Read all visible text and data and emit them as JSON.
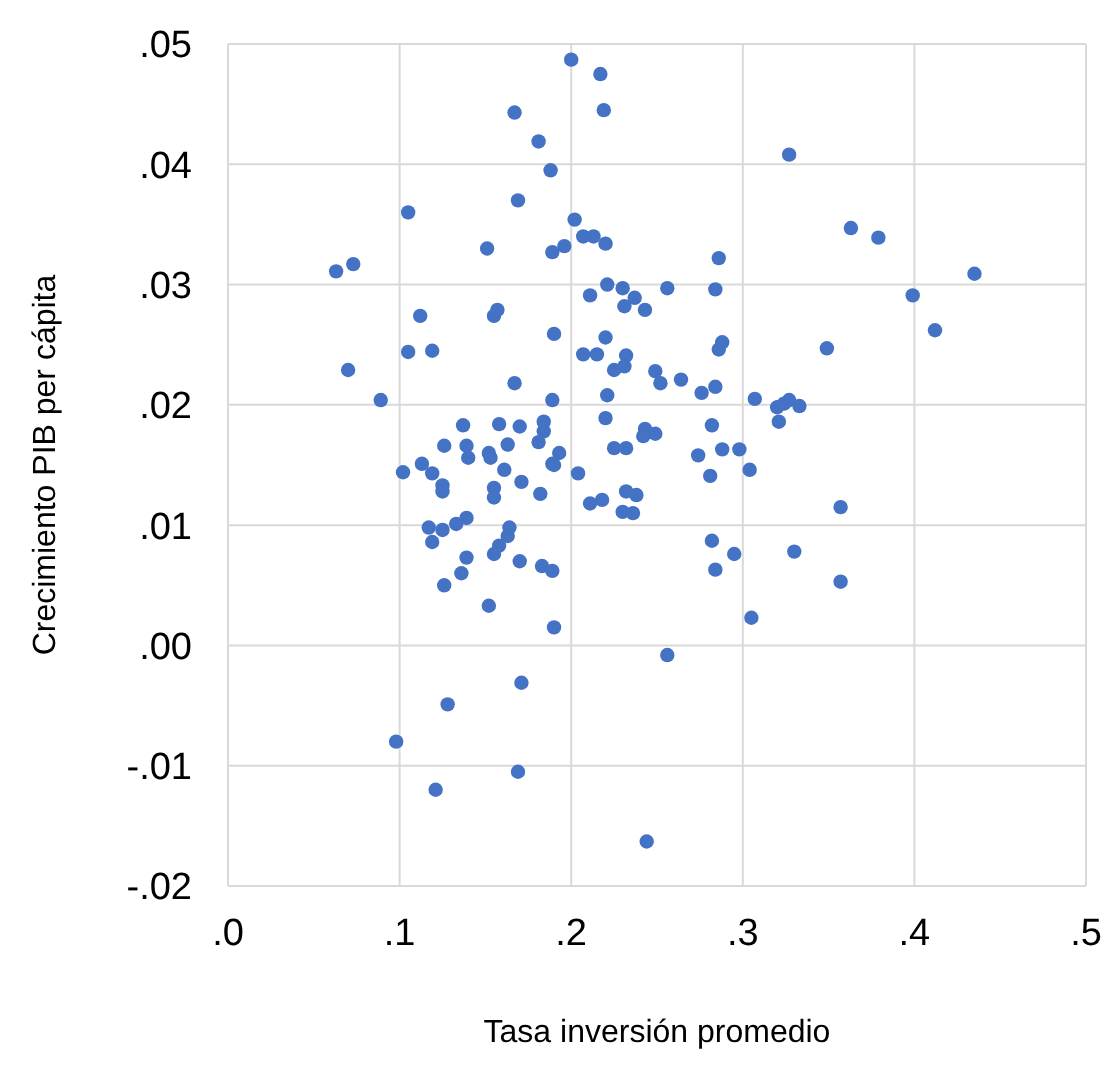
{
  "chart_data": {
    "type": "scatter",
    "xlabel": "Tasa inversión promedio",
    "ylabel": "Crecimiento PIB per cápita",
    "xlim": [
      0,
      0.5
    ],
    "xticks": [
      {
        "value": 0,
        "label": ".0"
      },
      {
        "value": 0.1,
        "label": ".1"
      },
      {
        "value": 0.2,
        "label": ".2"
      },
      {
        "value": 0.3,
        "label": ".3"
      },
      {
        "value": 0.4,
        "label": ".4"
      },
      {
        "value": 0.5,
        "label": ".5"
      }
    ],
    "ylim": [
      -0.02,
      0.05
    ],
    "yticks": [
      {
        "value": -0.02,
        "label": "-.02"
      },
      {
        "value": -0.01,
        "label": "-.01"
      },
      {
        "value": 0,
        "label": ".00"
      },
      {
        "value": 0.01,
        "label": ".01"
      },
      {
        "value": 0.02,
        "label": ".02"
      },
      {
        "value": 0.03,
        "label": ".03"
      },
      {
        "value": 0.04,
        "label": ".04"
      },
      {
        "value": 0.05,
        "label": ".05"
      }
    ],
    "grid": true,
    "legend": false,
    "marker": "circle",
    "series": [
      {
        "color": "#4472c4",
        "x": [
          0.2,
          0.217,
          0.219,
          0.167,
          0.181,
          0.188,
          0.327,
          0.169,
          0.105,
          0.202,
          0.207,
          0.213,
          0.22,
          0.151,
          0.189,
          0.196,
          0.363,
          0.379,
          0.435,
          0.399,
          0.412,
          0.349,
          0.063,
          0.073,
          0.211,
          0.221,
          0.23,
          0.237,
          0.231,
          0.243,
          0.256,
          0.112,
          0.155,
          0.157,
          0.19,
          0.105,
          0.119,
          0.07,
          0.207,
          0.215,
          0.22,
          0.232,
          0.225,
          0.231,
          0.249,
          0.252,
          0.089,
          0.167,
          0.189,
          0.221,
          0.22,
          0.137,
          0.158,
          0.17,
          0.184,
          0.184,
          0.243,
          0.249,
          0.286,
          0.284,
          0.286,
          0.288,
          0.264,
          0.276,
          0.284,
          0.307,
          0.32,
          0.324,
          0.327,
          0.333,
          0.321,
          0.282,
          0.181,
          0.126,
          0.139,
          0.14,
          0.152,
          0.153,
          0.163,
          0.193,
          0.189,
          0.19,
          0.225,
          0.232,
          0.102,
          0.113,
          0.119,
          0.125,
          0.125,
          0.161,
          0.171,
          0.182,
          0.155,
          0.155,
          0.204,
          0.211,
          0.218,
          0.23,
          0.232,
          0.236,
          0.238,
          0.117,
          0.119,
          0.125,
          0.133,
          0.139,
          0.164,
          0.163,
          0.158,
          0.155,
          0.139,
          0.17,
          0.183,
          0.189,
          0.136,
          0.126,
          0.152,
          0.19,
          0.256,
          0.171,
          0.128,
          0.098,
          0.169,
          0.121,
          0.244,
          0.242,
          0.274,
          0.288,
          0.298,
          0.281,
          0.304,
          0.357,
          0.282,
          0.295,
          0.284,
          0.33,
          0.357,
          0.305
        ],
        "values": [
          0.0487,
          0.0475,
          0.0445,
          0.0443,
          0.0419,
          0.0395,
          0.0408,
          0.037,
          0.036,
          0.0354,
          0.034,
          0.034,
          0.0334,
          0.033,
          0.0327,
          0.0332,
          0.0347,
          0.0339,
          0.0309,
          0.0291,
          0.0262,
          0.0247,
          0.0311,
          0.0317,
          0.0291,
          0.03,
          0.0297,
          0.0289,
          0.0282,
          0.0279,
          0.0297,
          0.0274,
          0.0274,
          0.0279,
          0.0259,
          0.0244,
          0.0245,
          0.0229,
          0.0242,
          0.0242,
          0.0256,
          0.0241,
          0.0229,
          0.0232,
          0.0228,
          0.0218,
          0.0204,
          0.0218,
          0.0204,
          0.0208,
          0.0189,
          0.0183,
          0.0184,
          0.0182,
          0.0186,
          0.0178,
          0.018,
          0.0176,
          0.0322,
          0.0296,
          0.0246,
          0.0252,
          0.0221,
          0.021,
          0.0215,
          0.0205,
          0.0198,
          0.0201,
          0.0204,
          0.0199,
          0.0186,
          0.0183,
          0.0169,
          0.0166,
          0.0166,
          0.0156,
          0.016,
          0.0156,
          0.0167,
          0.016,
          0.0151,
          0.015,
          0.0164,
          0.0164,
          0.0144,
          0.0151,
          0.0143,
          0.0133,
          0.0128,
          0.0146,
          0.0136,
          0.0126,
          0.0131,
          0.0123,
          0.0143,
          0.0118,
          0.0121,
          0.0111,
          0.0128,
          0.011,
          0.0125,
          0.0098,
          0.0086,
          0.0096,
          0.0101,
          0.0106,
          0.0098,
          0.0091,
          0.0083,
          0.0076,
          0.0073,
          0.007,
          0.0066,
          0.0062,
          0.006,
          0.005,
          0.0033,
          0.0015,
          -0.0008,
          -0.0031,
          -0.0049,
          -0.008,
          -0.0105,
          -0.012,
          -0.0163,
          0.0174,
          0.0158,
          0.0163,
          0.0163,
          0.0141,
          0.0146,
          0.0115,
          0.0087,
          0.0076,
          0.0063,
          0.0078,
          0.0053,
          0.0023
        ]
      }
    ]
  }
}
